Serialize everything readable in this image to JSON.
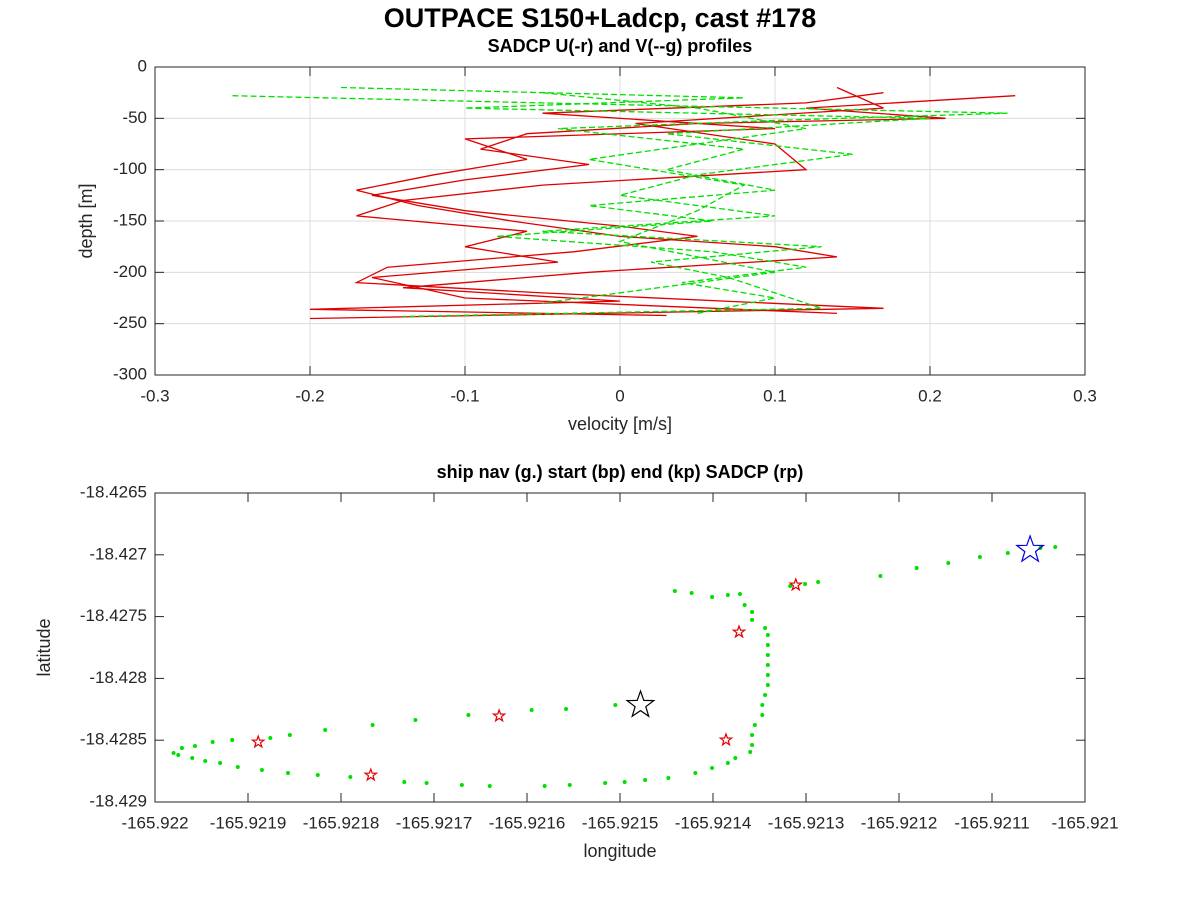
{
  "title": "OUTPACE S150+Ladcp, cast #178",
  "chart_data": [
    {
      "type": "line",
      "title": "SADCP U(-r) and V(--g) profiles",
      "xlabel": "velocity [m/s]",
      "ylabel": "depth [m]",
      "xlim": [
        -0.3,
        0.3
      ],
      "xticks": [
        -0.3,
        -0.2,
        -0.1,
        0,
        0.1,
        0.2,
        0.3
      ],
      "ylim": [
        -300,
        0
      ],
      "yticks": [
        -300,
        -250,
        -200,
        -150,
        -100,
        -50,
        0
      ],
      "grid": true,
      "series": [
        {
          "color": "#e00000",
          "dash": false,
          "x": [
            0.255,
            0.12,
            0.21,
            0.05,
            -0.06,
            -0.09,
            -0.02,
            -0.1,
            -0.16,
            -0.1,
            0.0,
            0.05,
            -0.03,
            -0.15,
            -0.17,
            -0.05,
            0.17,
            -0.2
          ],
          "y": [
            -28,
            -40,
            -50,
            -55,
            -65,
            -80,
            -95,
            -110,
            -125,
            -140,
            -155,
            -165,
            -180,
            -195,
            -210,
            -220,
            -235,
            -245
          ]
        },
        {
          "color": "#e00000",
          "dash": false,
          "x": [
            0.17,
            0.12,
            -0.05,
            0.1,
            -0.1,
            -0.06,
            -0.12,
            -0.17,
            -0.13,
            -0.07,
            0.0,
            0.1,
            0.14,
            -0.02,
            -0.14,
            0.0,
            -0.2,
            0.03
          ],
          "y": [
            -25,
            -35,
            -45,
            -60,
            -70,
            -90,
            -105,
            -120,
            -135,
            -150,
            -165,
            -175,
            -185,
            -200,
            -215,
            -228,
            -236,
            -242
          ]
        },
        {
          "color": "#e00000",
          "dash": false,
          "x": [
            0.14,
            0.17,
            0.01,
            0.1,
            0.12,
            -0.05,
            -0.14,
            -0.17,
            -0.06,
            -0.1,
            -0.04,
            -0.16,
            -0.1,
            0.14
          ],
          "y": [
            -20,
            -40,
            -55,
            -75,
            -100,
            -115,
            -130,
            -145,
            -160,
            -175,
            -190,
            -205,
            -225,
            -240
          ]
        },
        {
          "color": "#00e000",
          "dash": true,
          "x": [
            -0.25,
            -0.05,
            0.25,
            0.1,
            -0.04,
            0.08,
            0.03,
            0.1,
            -0.02,
            0.06,
            -0.08,
            0.06,
            0.12,
            0.04,
            0.1,
            0.05
          ],
          "y": [
            -28,
            -35,
            -45,
            -52,
            -60,
            -80,
            -100,
            -120,
            -135,
            -150,
            -165,
            -180,
            -195,
            -210,
            -225,
            -240
          ]
        },
        {
          "color": "#00e000",
          "dash": true,
          "x": [
            -0.18,
            0.08,
            -0.1,
            0.2,
            0.03,
            0.15,
            0.05,
            0.0,
            0.1,
            -0.05,
            0.13,
            0.02,
            0.07,
            0.1,
            0.13,
            -0.14
          ],
          "y": [
            -20,
            -30,
            -40,
            -50,
            -65,
            -85,
            -105,
            -125,
            -145,
            -160,
            -175,
            -190,
            -205,
            -220,
            -235,
            -243
          ]
        },
        {
          "color": "#00e000",
          "dash": true,
          "x": [
            -0.05,
            0.05,
            0.12,
            -0.02,
            0.08,
            0.05,
            0.0,
            0.1,
            -0.05
          ],
          "y": [
            -25,
            -40,
            -60,
            -90,
            -115,
            -140,
            -170,
            -200,
            -230
          ]
        }
      ]
    },
    {
      "type": "scatter",
      "title": "ship nav (g.) start (bp) end (kp) SADCP (rp)",
      "xlabel": "longitude",
      "ylabel": "latitude",
      "xlim": [
        -165.922,
        -165.921
      ],
      "xticks": [
        -165.922,
        -165.9219,
        -165.9218,
        -165.9217,
        -165.9216,
        -165.9215,
        -165.9214,
        -165.9213,
        -165.9212,
        -165.9211,
        -165.921
      ],
      "ylim": [
        -18.429,
        -18.4265
      ],
      "yticks": [
        -18.429,
        -18.4285,
        -18.428,
        -18.4275,
        -18.427,
        -18.4265
      ],
      "grid": false,
      "series": [
        {
          "color": "#00e000",
          "marker": "dot",
          "x": [
            -165.921032,
            -165.921048,
            -165.921083,
            -165.921113,
            -165.921147,
            -165.921181,
            -165.92122,
            -165.921287,
            -165.921301,
            -165.921317,
            -165.921441,
            -165.921423,
            -165.921401,
            -165.921384,
            -165.921371,
            -165.921366,
            -165.921358,
            -165.921358,
            -165.921344,
            -165.921341,
            -165.921341,
            -165.921341,
            -165.921341,
            -165.921341,
            -165.921341,
            -165.921344,
            -165.921347,
            -165.921347,
            -165.921355,
            -165.921358,
            -165.921358,
            -165.92136,
            -165.921376,
            -165.921384,
            -165.921401,
            -165.921419,
            -165.921448,
            -165.921473,
            -165.921495,
            -165.921516,
            -165.921554,
            -165.921581,
            -165.92164,
            -165.92167,
            -165.921708,
            -165.921732,
            -165.92179,
            -165.921825,
            -165.921857,
            -165.921885,
            -165.921911,
            -165.92193,
            -165.921946,
            -165.92196,
            -165.921975,
            -165.92198,
            -165.921971,
            -165.921957,
            -165.921938,
            -165.921917,
            -165.921876,
            -165.921855,
            -165.921817,
            -165.921766,
            -165.92172,
            -165.921663,
            -165.921595,
            -165.921558,
            -165.921505
          ],
          "y": [
            -18.426937,
            -18.426945,
            -18.426985,
            -18.427018,
            -18.427066,
            -18.427107,
            -18.427172,
            -18.42722,
            -18.427236,
            -18.427252,
            -18.427293,
            -18.427309,
            -18.427341,
            -18.427325,
            -18.427317,
            -18.427406,
            -18.427463,
            -18.427527,
            -18.427592,
            -18.427649,
            -18.42773,
            -18.427811,
            -18.427892,
            -18.427972,
            -18.428053,
            -18.428134,
            -18.428215,
            -18.428296,
            -18.428377,
            -18.428458,
            -18.428539,
            -18.428595,
            -18.428644,
            -18.428684,
            -18.428725,
            -18.428765,
            -18.428806,
            -18.428822,
            -18.428838,
            -18.428846,
            -18.428862,
            -18.428871,
            -18.428871,
            -18.428862,
            -18.428846,
            -18.428838,
            -18.428798,
            -18.428782,
            -18.428765,
            -18.428741,
            -18.428717,
            -18.428684,
            -18.428668,
            -18.428644,
            -18.42862,
            -18.428604,
            -18.428563,
            -18.428547,
            -18.428515,
            -18.428498,
            -18.428482,
            -18.428458,
            -18.428417,
            -18.428377,
            -18.428337,
            -18.428296,
            -18.428256,
            -18.428248,
            -18.428215
          ]
        },
        {
          "color": "#e00000",
          "marker": "star-small",
          "x": [
            -165.921311,
            -165.921372,
            -165.92163,
            -165.921889,
            -165.921768,
            -165.921386
          ],
          "y": [
            -18.427244,
            -18.427625,
            -18.428304,
            -18.428515,
            -18.428782,
            -18.428498
          ]
        },
        {
          "color": "#0000e0",
          "marker": "star",
          "x": [
            -165.921059
          ],
          "y": [
            -18.42696
          ]
        },
        {
          "color": "#000000",
          "marker": "star",
          "x": [
            -165.921478
          ],
          "y": [
            -18.428215
          ]
        }
      ]
    }
  ]
}
